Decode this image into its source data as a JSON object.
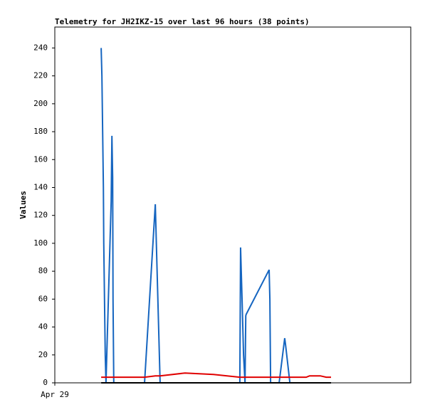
{
  "chart_data": {
    "type": "line",
    "title": "Telemetry for JH2IKZ-15 over last 96 hours (38 points)",
    "y_label": "Values",
    "x": [
      12.5,
      12.7,
      12.9,
      13.1,
      13.2,
      13.4,
      13.6,
      13.8,
      15.2,
      15.4,
      15.6,
      15.7,
      15.9,
      24.2,
      27.1,
      28.4,
      35.1,
      42.8,
      49.9,
      50.1,
      50.5,
      50.9,
      51.3,
      51.5,
      51.6,
      57.8,
      58.0,
      58.2,
      60.5,
      62.0,
      62.2,
      63.4,
      65.9,
      67.8,
      68.7,
      71.6,
      73.2,
      74.5
    ],
    "series": [
      {
        "color": "#1565c0",
        "values": [
          240,
          220,
          180,
          140,
          100,
          60,
          20,
          0,
          130,
          177,
          147,
          60,
          0,
          0,
          128,
          0,
          0,
          0,
          0,
          97,
          60,
          20,
          0,
          48,
          49,
          81,
          60,
          0,
          0,
          32,
          28,
          0,
          0,
          0,
          0,
          0,
          0,
          0
        ]
      },
      {
        "color": "#e00000",
        "values": [
          4,
          4,
          4,
          4,
          4,
          4,
          4,
          4,
          4,
          4,
          4,
          4,
          4,
          4,
          5,
          5,
          7,
          6,
          4,
          4,
          4,
          4,
          4,
          4,
          4,
          4,
          4,
          4,
          4,
          4,
          4,
          4,
          4,
          4,
          5,
          5,
          4,
          4
        ]
      },
      {
        "color": "#000000",
        "values": [
          0,
          0,
          0,
          0,
          0,
          0,
          0,
          0,
          0,
          0,
          0,
          0,
          0,
          0,
          0,
          0,
          0,
          0,
          0,
          0,
          0,
          0,
          0,
          0,
          0,
          0,
          0,
          0,
          0,
          0,
          0,
          0,
          0,
          0,
          0,
          0,
          0,
          0
        ]
      }
    ],
    "xlim": [
      0,
      96
    ],
    "xticks": [
      {
        "value": 0,
        "label": "Apr 29"
      }
    ],
    "ylim": [
      0,
      255
    ],
    "yticks": [
      0,
      20,
      40,
      60,
      80,
      100,
      120,
      140,
      160,
      180,
      200,
      220,
      240
    ]
  }
}
